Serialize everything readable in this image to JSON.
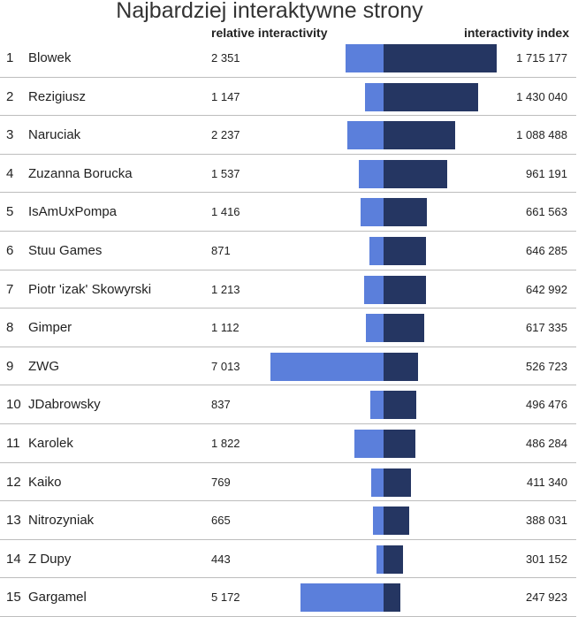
{
  "chart_data": {
    "type": "bar",
    "title": "Najbardziej interaktywne strony",
    "column_headers": {
      "relative": "relative interactivity",
      "index": "interactivity index"
    },
    "colors": {
      "relative": "#5b7fdb",
      "index": "#253662"
    },
    "rows": [
      {
        "rank": "1",
        "name": "Blowek",
        "relative": 2351,
        "relative_label": "2 351",
        "index": 1715177,
        "index_label": "1 715 177"
      },
      {
        "rank": "2",
        "name": "Rezigiusz",
        "relative": 1147,
        "relative_label": "1 147",
        "index": 1430040,
        "index_label": "1 430 040"
      },
      {
        "rank": "3",
        "name": "Naruciak",
        "relative": 2237,
        "relative_label": "2 237",
        "index": 1088488,
        "index_label": "1 088 488"
      },
      {
        "rank": "4",
        "name": "Zuzanna Borucka",
        "relative": 1537,
        "relative_label": "1 537",
        "index": 961191,
        "index_label": "961 191"
      },
      {
        "rank": "5",
        "name": "IsAmUxPompa",
        "relative": 1416,
        "relative_label": "1 416",
        "index": 661563,
        "index_label": "661 563"
      },
      {
        "rank": "6",
        "name": "Stuu Games",
        "relative": 871,
        "relative_label": "871",
        "index": 646285,
        "index_label": "646 285"
      },
      {
        "rank": "7",
        "name": "Piotr 'izak' Skowyrski",
        "relative": 1213,
        "relative_label": "1 213",
        "index": 642992,
        "index_label": "642 992"
      },
      {
        "rank": "8",
        "name": "Gimper",
        "relative": 1112,
        "relative_label": "1 112",
        "index": 617335,
        "index_label": "617 335"
      },
      {
        "rank": "9",
        "name": "ZWG",
        "relative": 7013,
        "relative_label": "7 013",
        "index": 526723,
        "index_label": "526 723"
      },
      {
        "rank": "10",
        "name": "JDabrowsky",
        "relative": 837,
        "relative_label": "837",
        "index": 496476,
        "index_label": "496 476"
      },
      {
        "rank": "11",
        "name": "Karolek",
        "relative": 1822,
        "relative_label": "1 822",
        "index": 486284,
        "index_label": "486 284"
      },
      {
        "rank": "12",
        "name": "Kaiko",
        "relative": 769,
        "relative_label": "769",
        "index": 411340,
        "index_label": "411 340"
      },
      {
        "rank": "13",
        "name": "Nitrozyniak",
        "relative": 665,
        "relative_label": "665",
        "index": 388031,
        "index_label": "388 031"
      },
      {
        "rank": "14",
        "name": "Z Dupy",
        "relative": 443,
        "relative_label": "443",
        "index": 301152,
        "index_label": "301 152"
      },
      {
        "rank": "15",
        "name": "Gargamel",
        "relative": 5172,
        "relative_label": "5 172",
        "index": 247923,
        "index_label": "247 923"
      }
    ]
  }
}
